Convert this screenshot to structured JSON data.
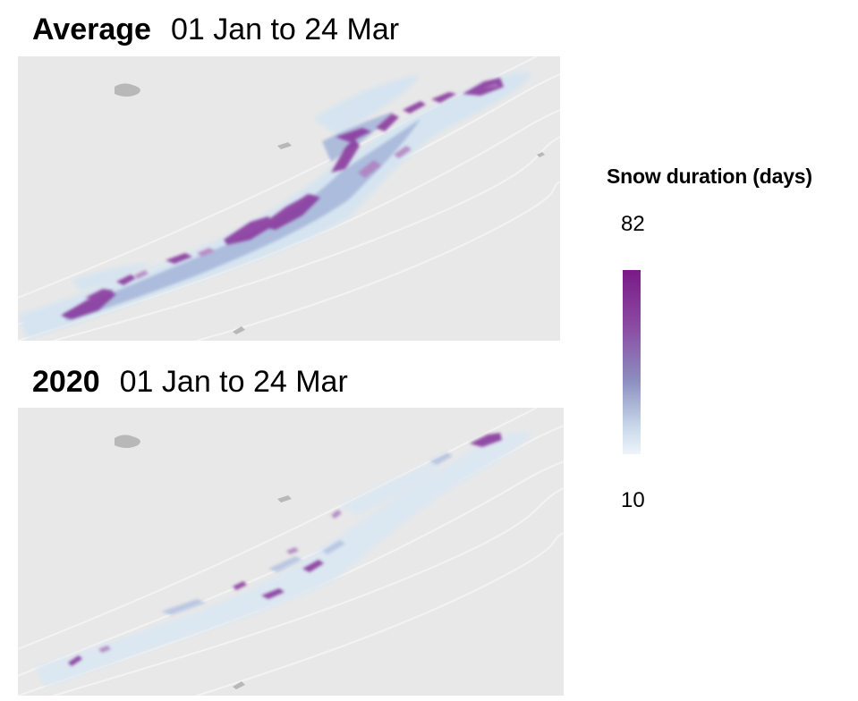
{
  "panels": [
    {
      "label": "Average",
      "period": "01 Jan to 24 Mar"
    },
    {
      "label": "2020",
      "period": "01 Jan to 24 Mar"
    }
  ],
  "legend": {
    "title": "Snow duration (days)",
    "max": "82",
    "min": "10",
    "color_max": "#7a1a86",
    "color_mid": "#8c8ebf",
    "color_min": "#eef4fa"
  },
  "colors": {
    "background_terrain": "#e8e8e8",
    "water": "#b8b8b8"
  }
}
